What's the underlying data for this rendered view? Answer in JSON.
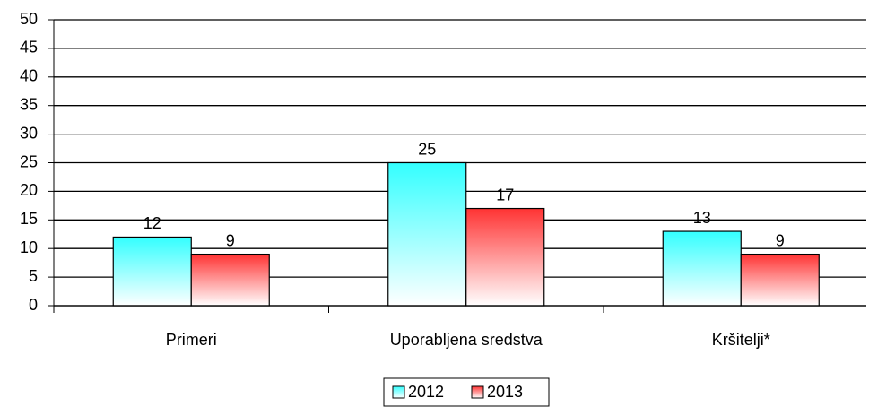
{
  "chart_data": {
    "type": "bar",
    "categories": [
      "Primeri",
      "Uporabljena sredstva",
      "Kršitelji*"
    ],
    "series": [
      {
        "name": "2012",
        "color": "#33ffff",
        "values": [
          12,
          25,
          13
        ]
      },
      {
        "name": "2013",
        "color": "#ff3333",
        "values": [
          9,
          17,
          9
        ]
      }
    ],
    "ylim": [
      0,
      50
    ],
    "yticks": [
      0,
      5,
      10,
      15,
      20,
      25,
      30,
      35,
      40,
      45,
      50
    ],
    "grid": true,
    "legend": "bottom"
  }
}
